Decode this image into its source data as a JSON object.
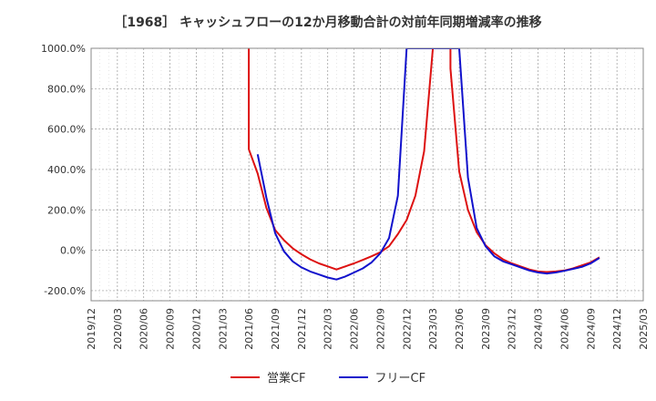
{
  "title": "［1968］ キャッシュフローの12か月移動合計の対前年同期増減率の推移",
  "chart_data": {
    "type": "line",
    "title": "［1968］ キャッシュフローの12か月移動合計の対前年同期増減率の推移",
    "xlabel": "",
    "ylabel": "",
    "ylim": [
      -250,
      1000
    ],
    "yticks": [
      -200,
      0,
      200,
      400,
      600,
      800,
      1000
    ],
    "ytick_labels": [
      "-200.0%",
      "0.0%",
      "200.0%",
      "400.0%",
      "600.0%",
      "800.0%",
      "1000.0%"
    ],
    "xticks": [
      "2019/12",
      "2020/03",
      "2020/06",
      "2020/09",
      "2020/12",
      "2021/03",
      "2021/06",
      "2021/09",
      "2021/12",
      "2022/03",
      "2022/06",
      "2022/09",
      "2022/12",
      "2023/03",
      "2023/06",
      "2023/09",
      "2023/12",
      "2024/03",
      "2024/06",
      "2024/09",
      "2024/12",
      "2025/03"
    ],
    "grid": true,
    "legend_position": "bottom",
    "series": [
      {
        "name": "営業CF",
        "color": "#dd1111",
        "points": [
          [
            "2021/06",
            1000
          ],
          [
            "2021/06",
            500
          ],
          [
            "2021/07",
            380
          ],
          [
            "2021/08",
            210
          ],
          [
            "2021/09",
            100
          ],
          [
            "2021/10",
            50
          ],
          [
            "2021/11",
            10
          ],
          [
            "2021/12",
            -20
          ],
          [
            "2022/01",
            -45
          ],
          [
            "2022/02",
            -65
          ],
          [
            "2022/03",
            -80
          ],
          [
            "2022/04",
            -95
          ],
          [
            "2022/05",
            -80
          ],
          [
            "2022/06",
            -65
          ],
          [
            "2022/07",
            -48
          ],
          [
            "2022/08",
            -30
          ],
          [
            "2022/09",
            -10
          ],
          [
            "2022/10",
            20
          ],
          [
            "2022/11",
            80
          ],
          [
            "2022/12",
            150
          ],
          [
            "2023/01",
            270
          ],
          [
            "2023/02",
            490
          ],
          [
            "2023/03",
            1000
          ],
          [
            "2023/05",
            1000
          ],
          [
            "2023/05",
            900
          ],
          [
            "2023/06",
            390
          ],
          [
            "2023/07",
            200
          ],
          [
            "2023/08",
            90
          ],
          [
            "2023/09",
            25
          ],
          [
            "2023/10",
            -15
          ],
          [
            "2023/11",
            -45
          ],
          [
            "2023/12",
            -65
          ],
          [
            "2024/01",
            -80
          ],
          [
            "2024/02",
            -95
          ],
          [
            "2024/03",
            -105
          ],
          [
            "2024/04",
            -108
          ],
          [
            "2024/05",
            -105
          ],
          [
            "2024/06",
            -100
          ],
          [
            "2024/07",
            -90
          ],
          [
            "2024/08",
            -75
          ],
          [
            "2024/09",
            -60
          ],
          [
            "2024/10",
            -35
          ]
        ]
      },
      {
        "name": "フリーCF",
        "color": "#1111cc",
        "points": [
          [
            "2021/07",
            475
          ],
          [
            "2021/08",
            260
          ],
          [
            "2021/09",
            85
          ],
          [
            "2021/10",
            -5
          ],
          [
            "2021/11",
            -55
          ],
          [
            "2021/12",
            -85
          ],
          [
            "2022/01",
            -105
          ],
          [
            "2022/02",
            -120
          ],
          [
            "2022/03",
            -135
          ],
          [
            "2022/04",
            -145
          ],
          [
            "2022/05",
            -130
          ],
          [
            "2022/06",
            -110
          ],
          [
            "2022/07",
            -90
          ],
          [
            "2022/08",
            -60
          ],
          [
            "2022/09",
            -15
          ],
          [
            "2022/10",
            60
          ],
          [
            "2022/11",
            270
          ],
          [
            "2022/12",
            1000
          ],
          [
            "2023/06",
            1000
          ],
          [
            "2023/07",
            360
          ],
          [
            "2023/08",
            110
          ],
          [
            "2023/09",
            20
          ],
          [
            "2023/10",
            -30
          ],
          [
            "2023/11",
            -55
          ],
          [
            "2023/12",
            -70
          ],
          [
            "2024/01",
            -85
          ],
          [
            "2024/02",
            -100
          ],
          [
            "2024/03",
            -110
          ],
          [
            "2024/04",
            -115
          ],
          [
            "2024/05",
            -110
          ],
          [
            "2024/06",
            -102
          ],
          [
            "2024/07",
            -92
          ],
          [
            "2024/08",
            -82
          ],
          [
            "2024/09",
            -65
          ],
          [
            "2024/10",
            -38
          ]
        ]
      }
    ]
  }
}
